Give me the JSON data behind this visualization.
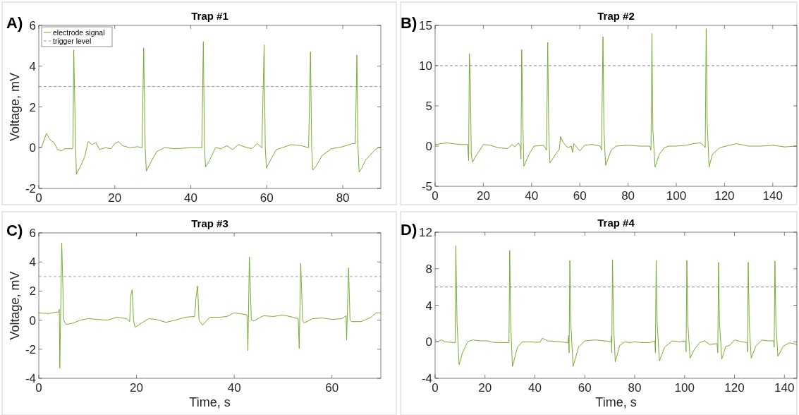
{
  "chart_data": [
    {
      "type": "line",
      "title": "Trap #1",
      "ylabel": "Voltage, mV",
      "annotations": [
        "A)"
      ],
      "xlim": [
        0,
        90
      ],
      "ylim": [
        -2,
        6
      ],
      "xticks": [
        0,
        20,
        40,
        60,
        80
      ],
      "yticks": [
        -2,
        0,
        2,
        4,
        6
      ],
      "legend": "top left",
      "series": [
        {
          "name": "electrode signal",
          "color": "#77ac30",
          "line_style": "solid",
          "x": [
            0,
            0.8,
            2,
            2.6,
            3.2,
            4,
            5,
            6,
            7,
            8.8,
            9.0,
            9.2,
            9.7,
            9.9,
            11,
            12,
            13,
            14,
            15,
            16,
            17.5,
            19,
            20,
            21,
            22,
            24,
            26,
            27.2,
            27.6,
            28,
            28.3,
            29.5,
            31,
            33,
            36,
            40,
            42.9,
            43.3,
            43.6,
            43.9,
            45,
            46.5,
            48,
            49.5,
            51,
            52.5,
            54,
            56,
            57.5,
            58.7,
            59.3,
            59.6,
            59.9,
            61,
            62.5,
            64,
            66.5,
            69,
            71,
            71.5,
            71.8,
            72.1,
            73,
            74.5,
            77,
            80,
            82.5,
            83.3,
            83.7,
            84,
            84.3,
            85,
            86,
            87,
            88.5,
            89.3,
            90
          ],
          "values": [
            0,
            0.05,
            0.7,
            0.5,
            0.35,
            0.25,
            -0.1,
            -0.15,
            -0.05,
            -0.05,
            0,
            4.8,
            0,
            -1.3,
            -0.9,
            -0.5,
            0.3,
            0.15,
            0.25,
            -0.1,
            0,
            -0.05,
            0.2,
            0.3,
            0.1,
            0,
            0.05,
            0,
            4.9,
            0,
            -1.15,
            -0.7,
            -0.2,
            0,
            -0.05,
            0,
            0,
            5.2,
            0,
            -0.95,
            -0.6,
            0,
            -0.05,
            0.1,
            -0.1,
            0.15,
            0.05,
            -0.05,
            0.2,
            0,
            5.05,
            0,
            -1.0,
            -0.6,
            -0.1,
            0,
            0.15,
            0.1,
            0,
            4.7,
            0,
            -1.1,
            -0.9,
            -0.4,
            -0.05,
            0.05,
            0.2,
            0.2,
            4.55,
            0,
            -1.2,
            -1.0,
            -0.6,
            -0.4,
            -0.1,
            0,
            0
          ]
        },
        {
          "name": "trigger level",
          "color": "#999999",
          "line_style": "dashed",
          "x": [
            0,
            90
          ],
          "values": [
            3,
            3
          ]
        }
      ]
    },
    {
      "type": "line",
      "title": "Trap #2",
      "annotations": [
        "B)"
      ],
      "xlim": [
        0,
        150
      ],
      "ylim": [
        -5,
        15
      ],
      "xticks": [
        0,
        20,
        40,
        60,
        80,
        100,
        120,
        140
      ],
      "yticks": [
        -5,
        0,
        5,
        10,
        15
      ],
      "series": [
        {
          "color": "#77ac30",
          "line_style": "solid",
          "x": [
            0,
            5,
            10,
            13.5,
            13.9,
            14.2,
            14.6,
            15,
            15.5,
            17,
            20,
            23,
            26,
            30,
            32,
            33,
            34.5,
            35.3,
            35.6,
            35.9,
            36.3,
            36.8,
            39,
            41,
            45,
            46.2,
            46.7,
            47.1,
            47.6,
            50,
            51.5,
            52,
            53,
            55,
            56.5,
            57,
            57.5,
            60,
            62,
            65,
            68.5,
            69,
            69.6,
            70,
            70.7,
            73,
            75,
            80,
            85,
            89,
            89.5,
            89.9,
            90.3,
            91.2,
            93,
            95,
            97,
            100,
            104,
            107,
            110,
            111.6,
            112,
            112.4,
            112.8,
            113.6,
            115,
            118,
            122,
            125,
            130,
            135,
            140,
            145,
            150
          ],
          "values": [
            0.2,
            0.4,
            0.2,
            0.2,
            -1.8,
            11.5,
            8,
            -1,
            -2,
            -1.2,
            0.2,
            0.1,
            -0.2,
            -0.3,
            0.2,
            -0.1,
            0.4,
            0,
            -1.6,
            12,
            4,
            -2.5,
            -1,
            0,
            0.1,
            -0.5,
            12.9,
            2,
            -2.1,
            -1,
            -0.4,
            1.2,
            0.5,
            -0.2,
            0,
            -0.8,
            0.3,
            -0.6,
            0.1,
            0.2,
            0,
            -0.5,
            13.6,
            2,
            -2.4,
            -0.5,
            0,
            0.1,
            0,
            0,
            -0.5,
            14,
            2,
            -2.6,
            -1,
            -0.2,
            0,
            0,
            0.1,
            0.3,
            0.4,
            0,
            -0.2,
            14.6,
            3,
            -2.6,
            -1,
            -0.2,
            0.1,
            0.3,
            0,
            0,
            0.1,
            -0.1,
            0
          ]
        },
        {
          "color": "#808080",
          "line_style": "dashed",
          "x": [
            0,
            150
          ],
          "values": [
            10,
            10
          ]
        }
      ]
    },
    {
      "type": "line",
      "title": "Trap #3",
      "xlabel": "Time, s",
      "ylabel": "Voltage, mV",
      "annotations": [
        "C)"
      ],
      "xlim": [
        0,
        70
      ],
      "ylim": [
        -4,
        6
      ],
      "xticks": [
        0,
        20,
        40,
        60
      ],
      "yticks": [
        -4,
        -2,
        0,
        2,
        4,
        6
      ],
      "series": [
        {
          "color": "#77ac30",
          "line_style": "solid",
          "x": [
            0,
            2,
            3.5,
            4.1,
            4.2,
            4.3,
            4.7,
            5.1,
            5.6,
            7,
            8.5,
            10,
            12,
            14,
            16,
            18,
            18.6,
            18.8,
            19.1,
            19.4,
            19.7,
            21,
            22.5,
            24,
            26,
            28,
            30,
            31.9,
            32.2,
            32.5,
            32.8,
            33.5,
            35,
            37,
            38.5,
            40,
            42,
            42.6,
            42.8,
            43.1,
            43.5,
            44,
            46,
            48,
            50,
            52,
            53.1,
            53.3,
            53.6,
            54,
            54.3,
            56,
            58,
            60,
            62,
            62.9,
            63.0,
            63.4,
            63.7,
            64,
            66,
            68,
            69,
            70
          ],
          "values": [
            0.5,
            0.45,
            0.55,
            0.55,
            0.75,
            -3.3,
            5.3,
            0,
            -0.3,
            -0.2,
            0,
            0.1,
            0.05,
            0,
            0.2,
            0.1,
            -0.1,
            1.6,
            2.1,
            0,
            -0.5,
            -0.2,
            0.1,
            0.05,
            -0.15,
            0,
            0.2,
            0.25,
            1.6,
            2.35,
            0,
            -0.35,
            0.2,
            0.2,
            0.25,
            0.5,
            0.4,
            0.35,
            -2.1,
            4.35,
            0,
            -0.05,
            0.3,
            0.25,
            0.35,
            0.2,
            0.1,
            -1.95,
            3.9,
            0,
            -0.2,
            0.1,
            0.15,
            0.05,
            0.1,
            0.3,
            -1.35,
            3.6,
            0,
            -0.1,
            -0.1,
            0.2,
            0.5,
            0.5
          ]
        },
        {
          "color": "#aaaaaa",
          "line_style": "dashed",
          "x": [
            0,
            70
          ],
          "values": [
            3,
            3
          ]
        }
      ]
    },
    {
      "type": "line",
      "title": "Trap #4",
      "xlabel": "Time, s",
      "annotations": [
        "D)"
      ],
      "xlim": [
        0,
        145
      ],
      "ylim": [
        -4,
        12
      ],
      "xticks": [
        0,
        20,
        40,
        60,
        80,
        100,
        120,
        140
      ],
      "yticks": [
        -4,
        0,
        4,
        8,
        12
      ],
      "series": [
        {
          "color": "#77ac30",
          "line_style": "solid",
          "x": [
            0,
            1,
            2.5,
            4,
            6,
            8,
            8.3,
            8.8,
            9.6,
            11,
            13,
            15,
            18,
            21,
            23,
            26,
            29.6,
            29.9,
            30.3,
            31,
            33,
            35,
            38,
            40,
            42,
            43,
            45,
            50,
            53.3,
            53.5,
            53.7,
            54,
            54.4,
            55.3,
            57.5,
            60,
            64,
            68,
            70.6,
            70.7,
            70.8,
            71.1,
            71.5,
            72.2,
            74,
            76,
            78,
            80,
            83,
            86,
            88.1,
            88.3,
            88.6,
            89,
            89.9,
            92,
            95,
            98,
            100.4,
            100.6,
            100.9,
            101.3,
            102.2,
            104,
            106,
            108,
            110,
            113,
            113.3,
            113.6,
            114,
            114.9,
            116.5,
            118,
            120,
            123,
            125.1,
            125.2,
            125.5,
            125.9,
            126.7,
            128.5,
            131,
            133,
            135.7,
            135.9,
            136.2,
            136.6,
            137.4,
            139.5,
            142,
            145
          ],
          "values": [
            0.3,
            0,
            0.2,
            0,
            -0.05,
            -0.1,
            10.5,
            2,
            -2.5,
            -1.2,
            0,
            0.2,
            0.1,
            0.1,
            -0.05,
            -0.1,
            -0.1,
            10.0,
            2,
            -2.7,
            -0.6,
            0,
            0,
            -0.05,
            -0.05,
            0.4,
            0.1,
            0,
            -0.1,
            0.7,
            -1.2,
            8.9,
            2,
            -2.7,
            -0.6,
            0.1,
            0.2,
            0.1,
            0,
            0.6,
            -1.2,
            9.0,
            2,
            -2.2,
            -0.4,
            0,
            -0.1,
            0,
            -0.1,
            -0.1,
            0.1,
            -1.2,
            8.9,
            2,
            -2.1,
            -0.6,
            0.1,
            0,
            0.1,
            -1.1,
            8.9,
            2,
            -1.8,
            -0.8,
            -0.1,
            0.1,
            -0.3,
            -0.2,
            -1.2,
            8.7,
            2,
            -1.9,
            -0.5,
            -0.4,
            0.2,
            0,
            -0.1,
            -1.1,
            8.7,
            2,
            -1.8,
            -0.5,
            0.2,
            0.1,
            0.1,
            -0.6,
            8.85,
            2,
            -1.6,
            -0.5,
            -0.1,
            -0.3
          ]
        },
        {
          "color": "#808080",
          "line_style": "dashed",
          "x": [
            0,
            145
          ],
          "values": [
            6,
            6
          ]
        }
      ]
    }
  ]
}
